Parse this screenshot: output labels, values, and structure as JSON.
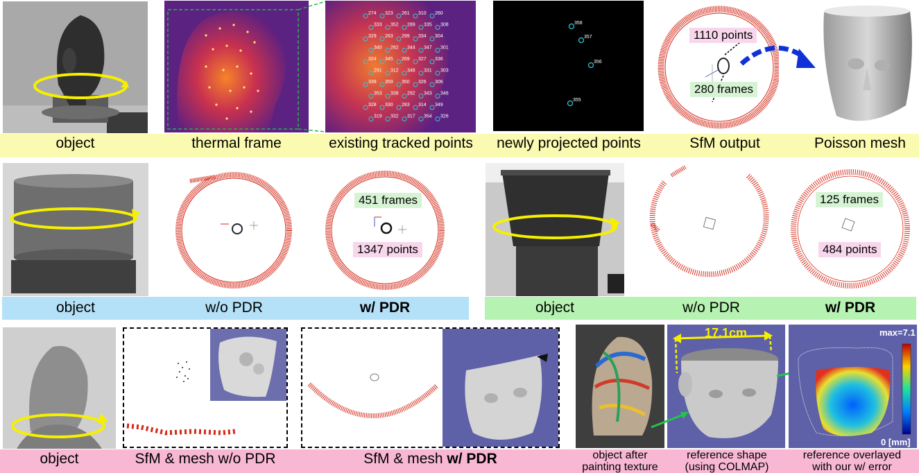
{
  "colors": {
    "yellow_band": "#fafab0",
    "blue_band": "#b4e0f8",
    "green_band": "#b6f2b2",
    "pink_band": "#f8b8d4",
    "camera_red": "#d42a1a",
    "cyan_marker": "#33c8d8",
    "arrow_yellow": "#f6f000",
    "arrow_blue": "#1030d8",
    "label_pink": "#f8d6ec",
    "label_green": "#d6f4d4"
  },
  "row1": {
    "captions": [
      "object",
      "thermal frame",
      "existing tracked points",
      "newly projected points",
      "SfM output",
      "Poisson mesh"
    ],
    "tracked_ids": [
      "274",
      "323",
      "261",
      "310",
      "260",
      "333",
      "352",
      "289",
      "335",
      "308",
      "329",
      "263",
      "299",
      "334",
      "304",
      "340",
      "262",
      "344",
      "347",
      "301",
      "324",
      "345",
      "269",
      "327",
      "336",
      "291",
      "312",
      "348",
      "331",
      "303",
      "339",
      "359",
      "350",
      "326",
      "306",
      "353",
      "338",
      "292",
      "343",
      "346",
      "328",
      "330",
      "283",
      "314",
      "349",
      "319",
      "332",
      "317",
      "354",
      "326"
    ],
    "projected_ids": [
      "358",
      "357",
      "356",
      "355"
    ],
    "sfm_points_label": "1110 points",
    "sfm_frames_label": "280 frames"
  },
  "row2": {
    "left": {
      "captions": [
        "object",
        "w/o PDR"
      ],
      "caption_bold": "w/ PDR",
      "frames_label": "451 frames",
      "points_label": "1347 points"
    },
    "right": {
      "captions": [
        "object",
        "w/o PDR"
      ],
      "caption_bold": "w/ PDR",
      "frames_label": "125 frames",
      "points_label": "484 points"
    }
  },
  "row3": {
    "captions": [
      "object",
      "SfM & mesh w/o PDR"
    ],
    "caption_mesh_prefix": "SfM & mesh ",
    "caption_mesh_bold": "w/ PDR",
    "painted_caption": [
      "object after",
      "painting texture"
    ],
    "reference_caption": [
      "reference shape",
      "(using COLMAP)"
    ],
    "overlay_caption": [
      "reference overlayed",
      "with our w/ error"
    ],
    "dimension_label": "17.1cm",
    "colorbar_max": "max=7.1",
    "colorbar_min": "0 [mm]"
  }
}
